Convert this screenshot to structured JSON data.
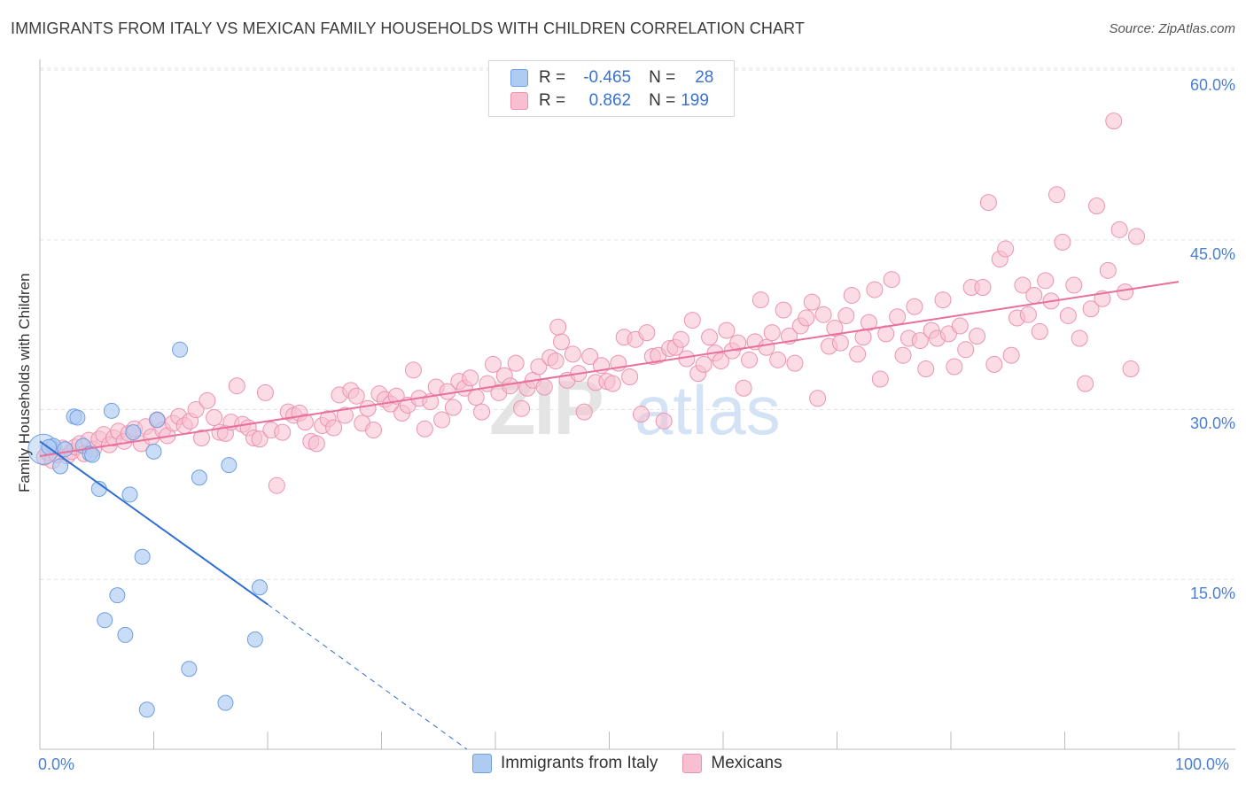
{
  "header": {
    "title": "IMMIGRANTS FROM ITALY VS MEXICAN FAMILY HOUSEHOLDS WITH CHILDREN CORRELATION CHART",
    "source": "Source: ZipAtlas.com"
  },
  "legend": {
    "rows": [
      {
        "r_label": "R =",
        "r_value": "-0.465",
        "n_label": "N =",
        "n_value": "28"
      },
      {
        "r_label": "R =",
        "r_value": "0.862",
        "n_label": "N =",
        "n_value": "199"
      }
    ]
  },
  "bottom_legend": {
    "items": [
      "Immigrants from Italy",
      "Mexicans"
    ]
  },
  "colors": {
    "italy_fill": "#aecbf2",
    "italy_stroke": "#6f9fe0",
    "italy_line": "#2f6fd3",
    "mexican_fill": "#f7bfd0",
    "mexican_stroke": "#ec93b0",
    "mexican_line": "#e8709a",
    "tick_text": "#4a7fd4",
    "grid": "#e2e2e2"
  },
  "watermark": {
    "part1": "ZIP",
    "part2": "atlas"
  },
  "chart_data": {
    "type": "scatter",
    "title": "IMMIGRANTS FROM ITALY VS MEXICAN FAMILY HOUSEHOLDS WITH CHILDREN CORRELATION CHART",
    "xlabel": "",
    "ylabel": "Family Households with Children",
    "xlim": [
      0,
      100
    ],
    "ylim": [
      0,
      63
    ],
    "y_ticks": [
      15,
      30,
      45,
      60
    ],
    "y_tick_labels": [
      "15.0%",
      "30.0%",
      "45.0%",
      "60.0%"
    ],
    "x_tick_labels": [
      "0.0%",
      "100.0%"
    ],
    "grid": true,
    "legend_position": "top-center",
    "series": [
      {
        "name": "Immigrants from Italy",
        "points": [
          [
            0.3,
            26.5
          ],
          [
            1.2,
            26.8
          ],
          [
            1.8,
            25.0
          ],
          [
            2.2,
            26.5
          ],
          [
            3.0,
            29.4
          ],
          [
            3.3,
            29.3
          ],
          [
            3.8,
            26.8
          ],
          [
            4.4,
            26.1
          ],
          [
            4.6,
            26.0
          ],
          [
            5.2,
            23.0
          ],
          [
            6.3,
            29.9
          ],
          [
            7.9,
            22.5
          ],
          [
            8.2,
            28.0
          ],
          [
            9.0,
            17.0
          ],
          [
            10.0,
            26.3
          ],
          [
            10.3,
            29.1
          ],
          [
            12.3,
            35.3
          ],
          [
            14.0,
            24.0
          ],
          [
            16.6,
            25.1
          ],
          [
            19.3,
            14.3
          ],
          [
            6.8,
            13.6
          ],
          [
            5.7,
            11.4
          ],
          [
            7.5,
            10.1
          ],
          [
            13.1,
            7.1
          ],
          [
            18.9,
            9.7
          ],
          [
            9.4,
            3.5
          ],
          [
            16.3,
            4.1
          ],
          [
            0.8,
            26.7
          ]
        ],
        "trend": {
          "x": [
            0,
            20
          ],
          "y": [
            27.2,
            12.8
          ]
        },
        "trend_extension": {
          "x": [
            20,
            37.5
          ],
          "y": [
            12.8,
            0
          ]
        }
      },
      {
        "name": "Mexicans",
        "points": [
          [
            0.4,
            25.8
          ],
          [
            0.7,
            26.2
          ],
          [
            1.1,
            25.5
          ],
          [
            1.5,
            26.0
          ],
          [
            2.0,
            26.6
          ],
          [
            2.4,
            25.9
          ],
          [
            2.8,
            26.3
          ],
          [
            3.1,
            26.7
          ],
          [
            3.5,
            27.0
          ],
          [
            3.9,
            26.1
          ],
          [
            4.3,
            27.3
          ],
          [
            4.7,
            26.5
          ],
          [
            5.2,
            27.4
          ],
          [
            5.6,
            27.8
          ],
          [
            6.1,
            26.9
          ],
          [
            6.5,
            27.5
          ],
          [
            6.9,
            28.1
          ],
          [
            7.4,
            27.2
          ],
          [
            7.8,
            27.9
          ],
          [
            8.3,
            28.3
          ],
          [
            8.9,
            27.0
          ],
          [
            9.3,
            28.5
          ],
          [
            9.8,
            27.6
          ],
          [
            10.3,
            29.1
          ],
          [
            10.8,
            28.2
          ],
          [
            11.2,
            27.7
          ],
          [
            11.7,
            28.8
          ],
          [
            12.2,
            29.4
          ],
          [
            12.7,
            28.6
          ],
          [
            13.2,
            29.0
          ],
          [
            13.7,
            30.0
          ],
          [
            14.2,
            27.5
          ],
          [
            14.7,
            30.8
          ],
          [
            15.3,
            29.3
          ],
          [
            15.8,
            28.0
          ],
          [
            16.3,
            27.9
          ],
          [
            16.8,
            28.9
          ],
          [
            17.3,
            32.1
          ],
          [
            17.8,
            28.7
          ],
          [
            18.3,
            28.4
          ],
          [
            18.8,
            27.5
          ],
          [
            19.3,
            27.4
          ],
          [
            19.8,
            31.5
          ],
          [
            20.3,
            28.2
          ],
          [
            20.8,
            23.3
          ],
          [
            21.3,
            28.0
          ],
          [
            21.8,
            29.8
          ],
          [
            22.3,
            29.5
          ],
          [
            22.8,
            29.7
          ],
          [
            23.3,
            28.9
          ],
          [
            23.8,
            27.2
          ],
          [
            24.3,
            27.0
          ],
          [
            24.8,
            28.6
          ],
          [
            25.3,
            29.2
          ],
          [
            25.8,
            28.4
          ],
          [
            26.3,
            31.3
          ],
          [
            26.8,
            29.5
          ],
          [
            27.3,
            31.7
          ],
          [
            27.8,
            31.2
          ],
          [
            28.3,
            28.8
          ],
          [
            28.8,
            30.1
          ],
          [
            29.3,
            28.2
          ],
          [
            29.8,
            31.4
          ],
          [
            30.3,
            30.9
          ],
          [
            30.8,
            30.5
          ],
          [
            31.3,
            31.2
          ],
          [
            31.8,
            29.7
          ],
          [
            32.3,
            30.4
          ],
          [
            32.8,
            33.5
          ],
          [
            33.3,
            31.0
          ],
          [
            33.8,
            28.3
          ],
          [
            34.3,
            30.7
          ],
          [
            34.8,
            32.0
          ],
          [
            35.3,
            29.1
          ],
          [
            35.8,
            31.6
          ],
          [
            36.3,
            30.2
          ],
          [
            36.8,
            32.5
          ],
          [
            37.3,
            31.9
          ],
          [
            37.8,
            32.8
          ],
          [
            38.3,
            31.1
          ],
          [
            38.8,
            29.8
          ],
          [
            39.3,
            32.3
          ],
          [
            39.8,
            34.0
          ],
          [
            40.3,
            31.5
          ],
          [
            40.8,
            33.0
          ],
          [
            41.3,
            32.1
          ],
          [
            41.8,
            34.1
          ],
          [
            42.3,
            30.1
          ],
          [
            42.8,
            31.9
          ],
          [
            43.3,
            32.6
          ],
          [
            43.8,
            33.8
          ],
          [
            44.3,
            32.0
          ],
          [
            44.8,
            34.6
          ],
          [
            45.3,
            34.3
          ],
          [
            45.8,
            36.0
          ],
          [
            46.3,
            32.6
          ],
          [
            46.8,
            34.9
          ],
          [
            47.3,
            33.2
          ],
          [
            47.8,
            29.8
          ],
          [
            48.3,
            34.7
          ],
          [
            48.8,
            32.4
          ],
          [
            49.3,
            33.9
          ],
          [
            49.8,
            32.5
          ],
          [
            50.3,
            32.3
          ],
          [
            50.8,
            34.1
          ],
          [
            51.3,
            36.4
          ],
          [
            51.8,
            32.9
          ],
          [
            52.3,
            36.2
          ],
          [
            52.8,
            29.6
          ],
          [
            53.3,
            36.8
          ],
          [
            53.8,
            34.7
          ],
          [
            54.3,
            34.8
          ],
          [
            54.8,
            29.0
          ],
          [
            55.3,
            35.4
          ],
          [
            55.8,
            35.5
          ],
          [
            56.3,
            36.2
          ],
          [
            56.8,
            34.5
          ],
          [
            57.3,
            37.9
          ],
          [
            57.8,
            33.2
          ],
          [
            58.3,
            34.0
          ],
          [
            58.8,
            36.4
          ],
          [
            59.3,
            35.0
          ],
          [
            59.8,
            34.3
          ],
          [
            60.3,
            37.0
          ],
          [
            60.8,
            35.2
          ],
          [
            61.3,
            35.9
          ],
          [
            61.8,
            31.9
          ],
          [
            62.3,
            34.4
          ],
          [
            62.8,
            36.0
          ],
          [
            63.3,
            39.7
          ],
          [
            63.8,
            35.5
          ],
          [
            64.3,
            36.8
          ],
          [
            64.8,
            34.4
          ],
          [
            65.3,
            38.8
          ],
          [
            65.8,
            36.5
          ],
          [
            66.3,
            34.1
          ],
          [
            66.8,
            37.4
          ],
          [
            67.3,
            38.1
          ],
          [
            67.8,
            39.5
          ],
          [
            68.3,
            31.0
          ],
          [
            68.8,
            38.4
          ],
          [
            69.3,
            35.6
          ],
          [
            69.8,
            37.2
          ],
          [
            70.3,
            35.9
          ],
          [
            70.8,
            38.3
          ],
          [
            71.3,
            40.1
          ],
          [
            71.8,
            34.9
          ],
          [
            72.3,
            36.4
          ],
          [
            72.8,
            37.7
          ],
          [
            73.3,
            40.6
          ],
          [
            73.8,
            32.7
          ],
          [
            74.3,
            36.7
          ],
          [
            74.8,
            41.5
          ],
          [
            75.3,
            38.2
          ],
          [
            75.8,
            34.8
          ],
          [
            76.3,
            36.3
          ],
          [
            76.8,
            39.1
          ],
          [
            77.3,
            36.1
          ],
          [
            77.8,
            33.6
          ],
          [
            78.3,
            37.0
          ],
          [
            78.8,
            36.3
          ],
          [
            79.3,
            39.7
          ],
          [
            79.8,
            36.7
          ],
          [
            80.3,
            33.8
          ],
          [
            80.8,
            37.4
          ],
          [
            81.3,
            35.3
          ],
          [
            81.8,
            40.8
          ],
          [
            82.3,
            36.5
          ],
          [
            82.8,
            40.8
          ],
          [
            83.3,
            48.3
          ],
          [
            83.8,
            34.0
          ],
          [
            84.3,
            43.3
          ],
          [
            84.8,
            44.2
          ],
          [
            85.3,
            34.8
          ],
          [
            85.8,
            38.1
          ],
          [
            86.3,
            41.0
          ],
          [
            86.8,
            38.4
          ],
          [
            87.3,
            40.1
          ],
          [
            87.8,
            36.9
          ],
          [
            88.3,
            41.4
          ],
          [
            88.8,
            39.6
          ],
          [
            89.3,
            49.0
          ],
          [
            89.8,
            44.8
          ],
          [
            90.3,
            38.3
          ],
          [
            90.8,
            41.0
          ],
          [
            91.3,
            36.3
          ],
          [
            91.8,
            32.3
          ],
          [
            92.3,
            38.9
          ],
          [
            92.8,
            48.0
          ],
          [
            93.3,
            39.8
          ],
          [
            93.8,
            42.3
          ],
          [
            94.3,
            55.5
          ],
          [
            94.8,
            45.9
          ],
          [
            95.3,
            40.4
          ],
          [
            95.8,
            33.6
          ],
          [
            96.3,
            45.3
          ],
          [
            45.5,
            37.3
          ]
        ],
        "trend": {
          "x": [
            0,
            100
          ],
          "y": [
            25.9,
            41.3
          ]
        }
      }
    ]
  }
}
